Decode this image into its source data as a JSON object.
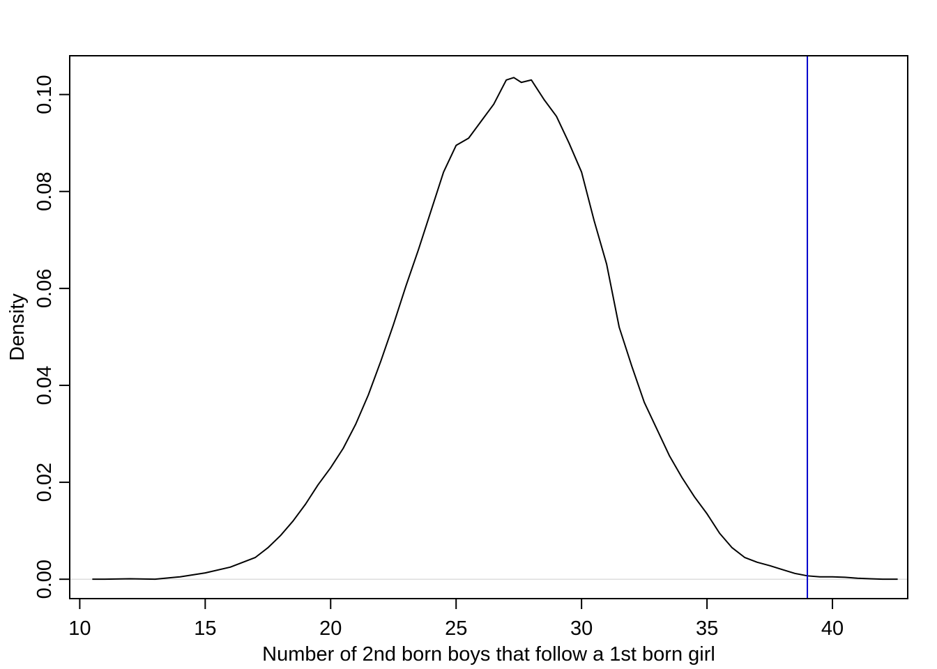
{
  "chart_data": {
    "type": "line",
    "title": "",
    "xlabel": "Number of 2nd born boys that follow a 1st born girl",
    "ylabel": "Density",
    "xlim": [
      9.6,
      43.0
    ],
    "ylim": [
      -0.004,
      0.108
    ],
    "x_ticks": [
      10,
      15,
      20,
      25,
      30,
      35,
      40
    ],
    "x_tick_labels": [
      "10",
      "15",
      "20",
      "25",
      "30",
      "35",
      "40"
    ],
    "y_ticks": [
      0.0,
      0.02,
      0.04,
      0.06,
      0.08,
      0.1
    ],
    "y_tick_labels": [
      "0.00",
      "0.02",
      "0.04",
      "0.06",
      "0.08",
      "0.10"
    ],
    "grid": false,
    "legend": "none",
    "baseline": {
      "y": 0,
      "color": "#d3d3d3"
    },
    "reference_line": {
      "x": 39,
      "color": "#0000cc"
    },
    "series": [
      {
        "color": "#000000",
        "x": [
          10.5,
          11.0,
          12.0,
          13.0,
          14.0,
          15.0,
          16.0,
          17.0,
          17.5,
          18.0,
          18.5,
          19.0,
          19.5,
          20.0,
          20.5,
          21.0,
          21.5,
          22.0,
          22.5,
          23.0,
          23.5,
          24.0,
          24.5,
          25.0,
          25.5,
          26.0,
          26.5,
          27.0,
          27.3,
          27.6,
          28.0,
          28.5,
          29.0,
          29.5,
          30.0,
          30.5,
          31.0,
          31.5,
          32.0,
          32.5,
          33.0,
          33.5,
          34.0,
          34.5,
          35.0,
          35.5,
          36.0,
          36.5,
          37.0,
          37.5,
          38.0,
          38.5,
          39.0,
          39.5,
          40.0,
          40.5,
          41.0,
          41.5,
          42.0,
          42.6
        ],
        "y": [
          0.0,
          0.0,
          0.0001,
          0.0,
          0.0005,
          0.0013,
          0.0025,
          0.0045,
          0.0065,
          0.009,
          0.012,
          0.0155,
          0.0195,
          0.023,
          0.027,
          0.032,
          0.038,
          0.045,
          0.0525,
          0.0605,
          0.068,
          0.076,
          0.084,
          0.0895,
          0.091,
          0.0945,
          0.098,
          0.103,
          0.1035,
          0.1025,
          0.103,
          0.099,
          0.0955,
          0.09,
          0.084,
          0.074,
          0.065,
          0.052,
          0.044,
          0.0365,
          0.031,
          0.0255,
          0.021,
          0.017,
          0.0135,
          0.0095,
          0.0065,
          0.0045,
          0.0035,
          0.0028,
          0.002,
          0.0012,
          0.0007,
          0.0005,
          0.0005,
          0.0004,
          0.0002,
          0.0001,
          0.0,
          0.0
        ]
      }
    ]
  }
}
